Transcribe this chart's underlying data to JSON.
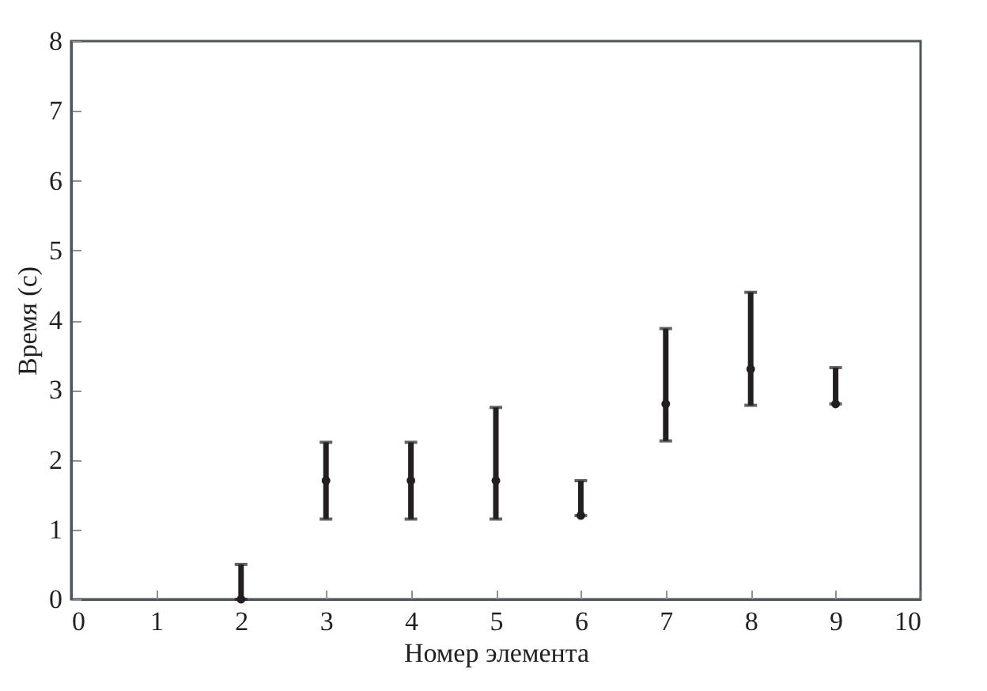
{
  "chart_data": {
    "type": "scatter",
    "xlabel": "Номер элемента",
    "ylabel": "Время (с)",
    "x": [
      2,
      3,
      4,
      5,
      6,
      7,
      8,
      9
    ],
    "series": [
      {
        "color": "#231f20",
        "values": [
          0,
          1.7,
          1.7,
          1.7,
          1.2,
          2.8,
          3.3,
          2.8
        ],
        "errors": [
          [
            0,
            0.5
          ],
          [
            1.15,
            2.25
          ],
          [
            1.15,
            2.25
          ],
          [
            1.15,
            2.75
          ],
          [
            1.2,
            1.7
          ],
          [
            2.27,
            3.88
          ],
          [
            2.78,
            4.4
          ],
          [
            2.8,
            3.32
          ]
        ]
      }
    ],
    "xlim": [
      0,
      10
    ],
    "xticks": [
      0,
      1,
      2,
      3,
      4,
      5,
      6,
      7,
      8,
      9,
      10
    ],
    "ylim": [
      0,
      8
    ],
    "yticks": [
      0,
      1,
      2,
      3,
      4,
      5,
      6,
      7,
      8
    ],
    "grid": false
  }
}
